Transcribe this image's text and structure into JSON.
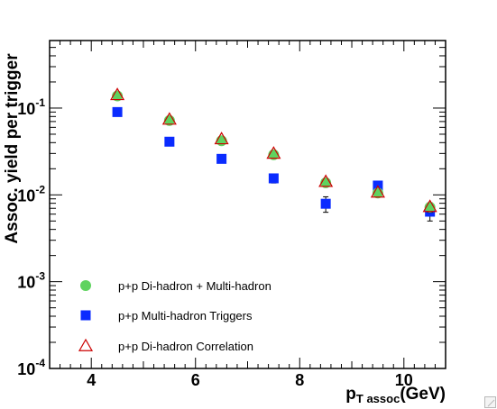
{
  "chart_data": {
    "type": "scatter",
    "title": "",
    "ylabel": "Assoc. yield per trigger",
    "xlabel_main": "p",
    "xlabel_sub": "T assoc",
    "xlabel_unit": "(GeV)",
    "xlim": [
      3.2,
      10.8
    ],
    "ylim": [
      0.0001,
      0.6
    ],
    "yscale": "log",
    "grid": false,
    "legend_position": "bottom-left",
    "x_ticks": [
      {
        "value": 4,
        "label": "4"
      },
      {
        "value": 6,
        "label": "6"
      },
      {
        "value": 8,
        "label": "8"
      },
      {
        "value": 10,
        "label": "10"
      }
    ],
    "y_ticks": [
      {
        "value": 0.1,
        "base": "10",
        "exp": "-1"
      },
      {
        "value": 0.01,
        "base": "10",
        "exp": "-2"
      },
      {
        "value": 0.001,
        "base": "10",
        "exp": "-3"
      },
      {
        "value": 0.0001,
        "base": "10",
        "exp": "-4"
      }
    ],
    "series": [
      {
        "name": "p+p Di-hadron + Multi-hadron",
        "marker": "circle",
        "color": "#5fd35f",
        "x": [
          4.5,
          5.5,
          6.5,
          7.5,
          8.5,
          9.5,
          10.5
        ],
        "y": [
          0.138,
          0.072,
          0.042,
          0.029,
          0.0138,
          0.0105,
          0.0072
        ],
        "err": [
          0.007,
          0.005,
          0.003,
          0.002,
          0.0012,
          0.001,
          0.0009
        ]
      },
      {
        "name": "p+p Multi-hadron Triggers",
        "marker": "square",
        "color": "#0a2bff",
        "x": [
          4.5,
          5.5,
          6.5,
          7.5,
          8.5,
          9.5,
          10.5
        ],
        "y": [
          0.09,
          0.041,
          0.026,
          0.0155,
          0.0079,
          0.0128,
          0.0064
        ],
        "err": [
          0.003,
          0.002,
          0.0015,
          0.0018,
          0.0016,
          0.0012,
          0.0014
        ]
      },
      {
        "name": "p+p Di-hadron Correlation",
        "marker": "triangle",
        "color": "#cc0000",
        "x": [
          4.5,
          5.5,
          6.5,
          7.5,
          8.5,
          9.5,
          10.5
        ],
        "y": [
          0.142,
          0.074,
          0.044,
          0.03,
          0.0142,
          0.0107,
          0.0073
        ],
        "err": [
          0,
          0,
          0,
          0,
          0,
          0,
          0
        ]
      }
    ]
  }
}
